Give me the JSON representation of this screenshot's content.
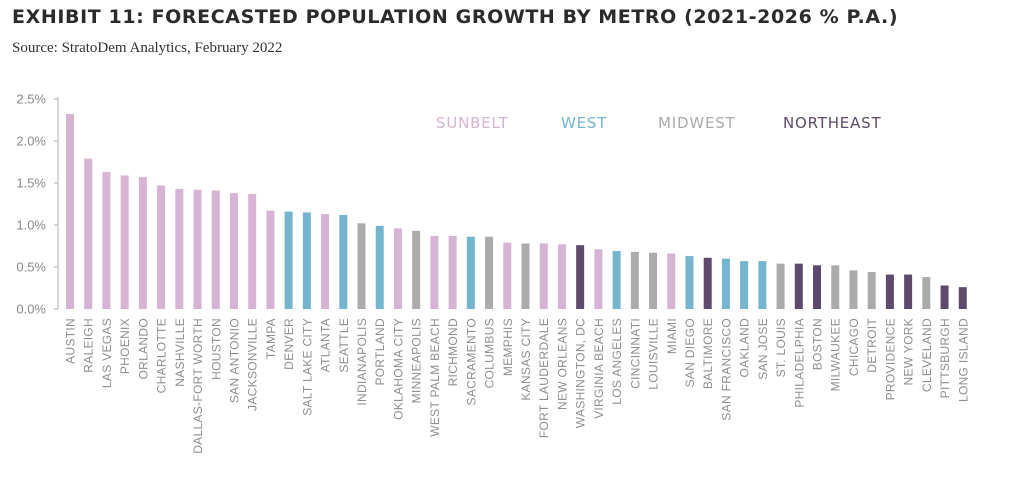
{
  "title": "EXHIBIT 11: FORECASTED POPULATION GROWTH BY METRO (2021-2026 % P.A.)",
  "subtitle": "Source: StratoDem Analytics, February 2022",
  "colors": {
    "sunbelt": "#d7b3d6",
    "west": "#76b5cf",
    "midwest": "#ababab",
    "northeast": "#5d4a6d",
    "axis": "#b0b0b0",
    "tick_text": "#8a8a8a"
  },
  "chart_data": {
    "type": "bar",
    "ylim": [
      0,
      2.5
    ],
    "yticks": [
      "0.0%",
      "0.5%",
      "1.0%",
      "1.5%",
      "2.0%",
      "2.5%"
    ],
    "ytick_values": [
      0,
      0.5,
      1.0,
      1.5,
      2.0,
      2.5
    ],
    "grid": false,
    "legend_position": "top-right",
    "legend": [
      {
        "key": "sunbelt",
        "label": "SUNBELT"
      },
      {
        "key": "west",
        "label": "WEST"
      },
      {
        "key": "midwest",
        "label": "MIDWEST"
      },
      {
        "key": "northeast",
        "label": "NORTHEAST"
      }
    ],
    "categories": [
      "AUSTIN",
      "RALEIGH",
      "LAS VEGAS",
      "PHOENIX",
      "ORLANDO",
      "CHARLOTTE",
      "NASHVILLE",
      "DALLAS-FORT WORTH",
      "HOUSTON",
      "SAN ANTONIO",
      "JACKSONVILLE",
      "TAMPA",
      "DENVER",
      "SALT LAKE CITY",
      "ATLANTA",
      "SEATTLE",
      "INDIANAPOLIS",
      "PORTLAND",
      "OKLAHOMA CITY",
      "MINNEAPOLIS",
      "WEST PALM BEACH",
      "RICHMOND",
      "SACRAMENTO",
      "COLUMBUS",
      "MEMPHIS",
      "KANSAS CITY",
      "FORT LAUDERDALE",
      "NEW ORLEANS",
      "WASHINGTON, DC",
      "VIRGINIA BEACH",
      "LOS ANGELES",
      "CINCINNATI",
      "LOUISVILLE",
      "MIAMI",
      "SAN DIEGO",
      "BALTIMORE",
      "SAN FRANCISCO",
      "OAKLAND",
      "SAN JOSE",
      "ST. LOUIS",
      "PHILADELPHIA",
      "BOSTON",
      "MILWAUKEE",
      "CHICAGO",
      "DETROIT",
      "PROVIDENCE",
      "NEW YORK",
      "CLEVELAND",
      "PITTSBURGH",
      "LONG ISLAND"
    ],
    "values": [
      2.32,
      1.79,
      1.63,
      1.59,
      1.57,
      1.47,
      1.43,
      1.42,
      1.41,
      1.38,
      1.37,
      1.17,
      1.16,
      1.15,
      1.13,
      1.12,
      1.02,
      0.99,
      0.96,
      0.93,
      0.87,
      0.87,
      0.86,
      0.86,
      0.79,
      0.78,
      0.78,
      0.77,
      0.76,
      0.71,
      0.69,
      0.68,
      0.67,
      0.66,
      0.63,
      0.61,
      0.6,
      0.57,
      0.57,
      0.54,
      0.54,
      0.52,
      0.52,
      0.46,
      0.44,
      0.41,
      0.41,
      0.38,
      0.28,
      0.26
    ],
    "regions": [
      "sunbelt",
      "sunbelt",
      "sunbelt",
      "sunbelt",
      "sunbelt",
      "sunbelt",
      "sunbelt",
      "sunbelt",
      "sunbelt",
      "sunbelt",
      "sunbelt",
      "sunbelt",
      "west",
      "west",
      "sunbelt",
      "west",
      "midwest",
      "west",
      "sunbelt",
      "midwest",
      "sunbelt",
      "sunbelt",
      "west",
      "midwest",
      "sunbelt",
      "midwest",
      "sunbelt",
      "sunbelt",
      "northeast",
      "sunbelt",
      "west",
      "midwest",
      "midwest",
      "sunbelt",
      "west",
      "northeast",
      "west",
      "west",
      "west",
      "midwest",
      "northeast",
      "northeast",
      "midwest",
      "midwest",
      "midwest",
      "northeast",
      "northeast",
      "midwest",
      "northeast",
      "northeast"
    ]
  }
}
